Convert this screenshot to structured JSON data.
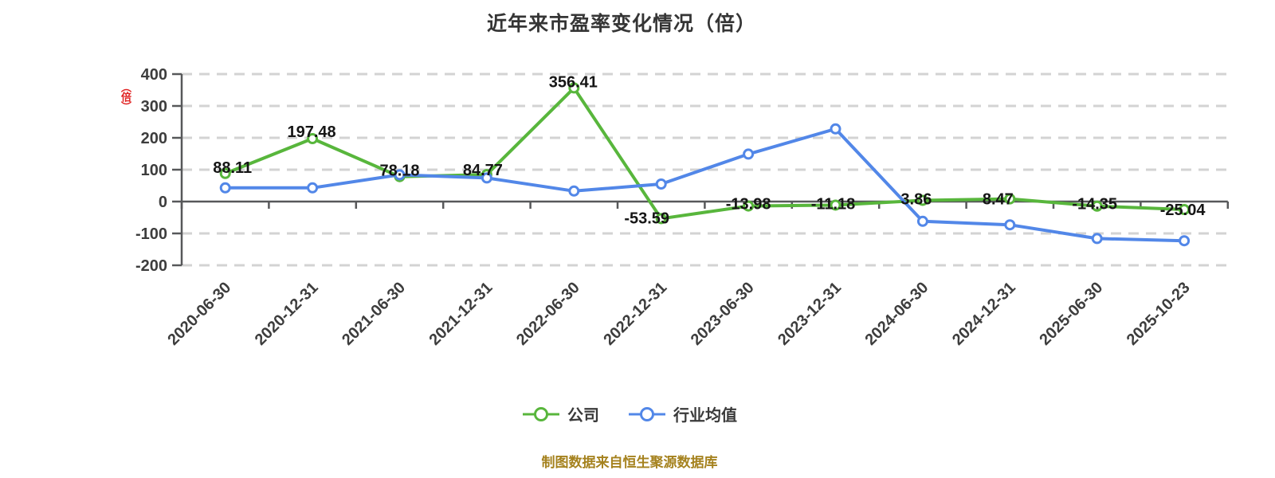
{
  "title": "近年来市盈率变化情况（倍）",
  "y_axis_unit": "（倍）",
  "footer": "制图数据来自恒生聚源数据库",
  "legend": [
    {
      "label": "公司",
      "color": "#58b63c"
    },
    {
      "label": "行业均值",
      "color": "#5287e8"
    }
  ],
  "colors": {
    "company_line": "#58b63c",
    "industry_line": "#5287e8",
    "axis": "#57585a",
    "gridline": "#d3d3d3",
    "axis_label": "#3d3d3d",
    "data_label": "#151515",
    "footer_text": "#a5821e",
    "unit_stamp": "#e02121",
    "marker_fill": "#ffffff"
  },
  "chart_data": {
    "type": "line",
    "title": "近年来市盈率变化情况（倍）",
    "categories": [
      "2020-06-30",
      "2020-12-31",
      "2021-06-30",
      "2021-12-31",
      "2022-06-30",
      "2022-12-31",
      "2023-06-30",
      "2023-12-31",
      "2024-06-30",
      "2024-12-31",
      "2025-06-30",
      "2025-10-23"
    ],
    "series": [
      {
        "name": "公司",
        "color": "#58b63c",
        "values": [
          88.11,
          197.48,
          78.18,
          84.77,
          356.41,
          -53.59,
          -13.98,
          -11.18,
          3.86,
          8.47,
          -14.35,
          -25.04
        ],
        "point_labels": [
          "88.11",
          "197.48",
          "78.18",
          "84.77",
          "356.41",
          "-53.59",
          "-13.98",
          "-11.18",
          "3.86",
          "8.47",
          "-14.35",
          "-25.04"
        ],
        "labeled": true
      },
      {
        "name": "行业均值",
        "color": "#5287e8",
        "values": [
          43,
          43,
          84,
          74,
          33,
          55,
          149,
          228,
          -62,
          -73,
          -116,
          -123
        ],
        "labeled": false
      }
    ],
    "ylabel": "（倍）",
    "ylim": [
      -200,
      400
    ],
    "yticks": [
      400,
      300,
      200,
      100,
      0,
      -100,
      -200
    ],
    "grid": "horizontal-dashed",
    "x_label_rotation": 45,
    "legend_position": "bottom"
  }
}
